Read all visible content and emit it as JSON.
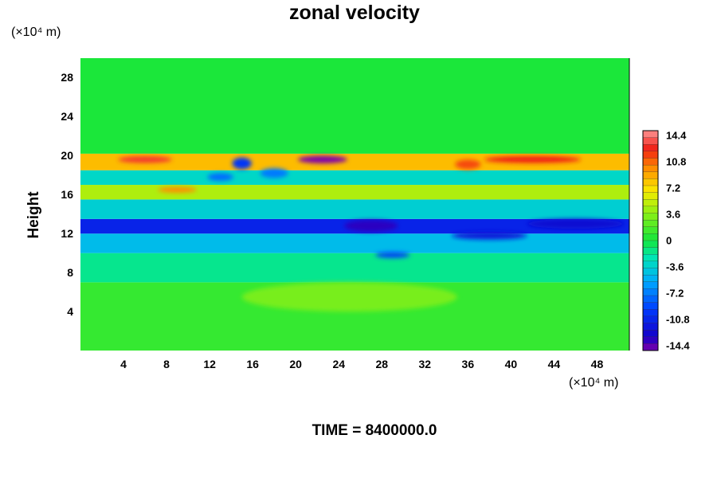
{
  "chart_data": {
    "type": "heatmap",
    "title": "zonal velocity",
    "ylabel": "Height",
    "x_unit": "(×10⁴ m)",
    "y_unit": "(×10⁴ m)",
    "xlim": [
      0,
      51
    ],
    "ylim": [
      0,
      30
    ],
    "x_ticks": [
      4,
      8,
      12,
      16,
      20,
      24,
      28,
      32,
      36,
      40,
      44,
      48
    ],
    "y_ticks": [
      4,
      8,
      12,
      16,
      20,
      24,
      28
    ],
    "colorbar": {
      "range": [
        -14.4,
        14.4
      ],
      "tick_values": [
        14.4,
        10.8,
        7.2,
        3.6,
        0,
        -3.6,
        -7.2,
        -10.8,
        -14.4
      ],
      "tick_labels": [
        "14.4",
        "10.8",
        "7.2",
        "3.6",
        "0",
        "-3.6",
        "-7.2",
        "-10.8",
        "-14.4"
      ]
    },
    "bands": [
      {
        "y": [
          0,
          7
        ],
        "value": 1.0
      },
      {
        "y": [
          7,
          10
        ],
        "value": -1.5
      },
      {
        "y": [
          10,
          12
        ],
        "value": -4.5
      },
      {
        "y": [
          12,
          13.5
        ],
        "value": -10.5
      },
      {
        "y": [
          13.5,
          15.5
        ],
        "value": -3.5
      },
      {
        "y": [
          15.5,
          17
        ],
        "value": 4.5
      },
      {
        "y": [
          17,
          18.5
        ],
        "value": -3.0
      },
      {
        "y": [
          18.5,
          20.2
        ],
        "value": 8.0
      },
      {
        "y": [
          20.2,
          30
        ],
        "value": 0.2
      }
    ],
    "features": [
      {
        "x": 6,
        "y": 19.6,
        "rx": 2.5,
        "ry": 0.35,
        "value": 12.5
      },
      {
        "x": 22.5,
        "y": 19.6,
        "rx": 2.3,
        "ry": 0.4,
        "value": -14.4
      },
      {
        "x": 15,
        "y": 19.2,
        "rx": 0.9,
        "ry": 0.6,
        "value": -9.5
      },
      {
        "x": 18,
        "y": 18.2,
        "rx": 1.3,
        "ry": 0.5,
        "value": -7.0
      },
      {
        "x": 13,
        "y": 17.8,
        "rx": 1.2,
        "ry": 0.4,
        "value": -7.5
      },
      {
        "x": 9,
        "y": 16.5,
        "rx": 1.8,
        "ry": 0.3,
        "value": 9.5
      },
      {
        "x": 42,
        "y": 19.6,
        "rx": 4.5,
        "ry": 0.35,
        "value": 12.0
      },
      {
        "x": 36,
        "y": 19.1,
        "rx": 1.2,
        "ry": 0.5,
        "value": 11.0
      },
      {
        "x": 27,
        "y": 12.8,
        "rx": 2.5,
        "ry": 0.6,
        "value": -13.0
      },
      {
        "x": 46,
        "y": 13.0,
        "rx": 4.5,
        "ry": 0.5,
        "value": -12.0
      },
      {
        "x": 38,
        "y": 11.8,
        "rx": 3.5,
        "ry": 0.4,
        "value": -11.5
      },
      {
        "x": 29,
        "y": 9.8,
        "rx": 1.6,
        "ry": 0.3,
        "value": -9.0
      },
      {
        "x": 25,
        "y": 5.5,
        "rx": 10.0,
        "ry": 1.5,
        "value": 3.0
      }
    ]
  },
  "footer": {
    "time_label": "TIME = 8400000.0"
  }
}
